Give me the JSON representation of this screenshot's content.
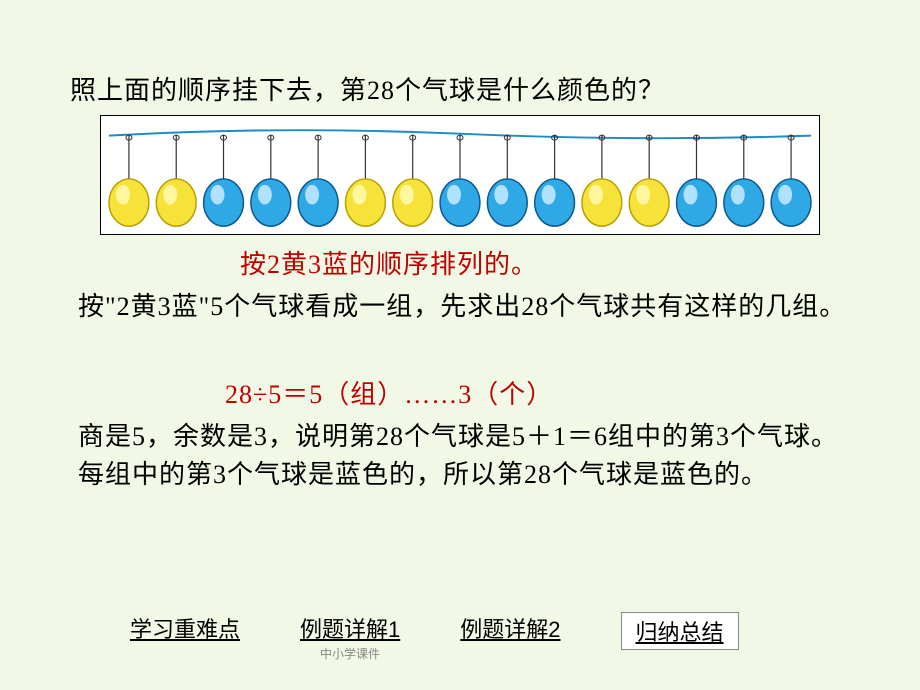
{
  "question": "照上面的顺序挂下去，第28个气球是什么颜色的？",
  "balloons": {
    "pattern": [
      "yellow",
      "yellow",
      "blue",
      "blue",
      "blue",
      "yellow",
      "yellow",
      "blue",
      "blue",
      "blue",
      "yellow",
      "yellow",
      "blue",
      "blue",
      "blue"
    ],
    "colors": {
      "yellow_fill": "#f7e23a",
      "yellow_stroke": "#b8a000",
      "yellow_highlight": "#fff8a8",
      "blue_fill": "#2fa8e6",
      "blue_stroke": "#0a5a8f",
      "blue_highlight": "#bfe8ff"
    },
    "string_color": "#333333",
    "rope_color": "#1a8cc8",
    "bg": "#ffffff",
    "border": "#000000"
  },
  "hint1": "按2黄3蓝的顺序排列的。",
  "para1": "按\"2黄3蓝\"5个气球看成一组，先求出28个气球共有这样的几组。",
  "calc": "28÷5＝5（组）……3（个）",
  "para2": "商是5，余数是3，说明第28个气球是5＋1＝6组中的第3个气球。每组中的第3个气球是蓝色的，所以第28个气球是蓝色的。",
  "nav": {
    "item1": "学习重难点",
    "item2": "例题详解1",
    "item3": "例题详解2",
    "item4": "归纳总结"
  },
  "watermark": "中小学课件"
}
